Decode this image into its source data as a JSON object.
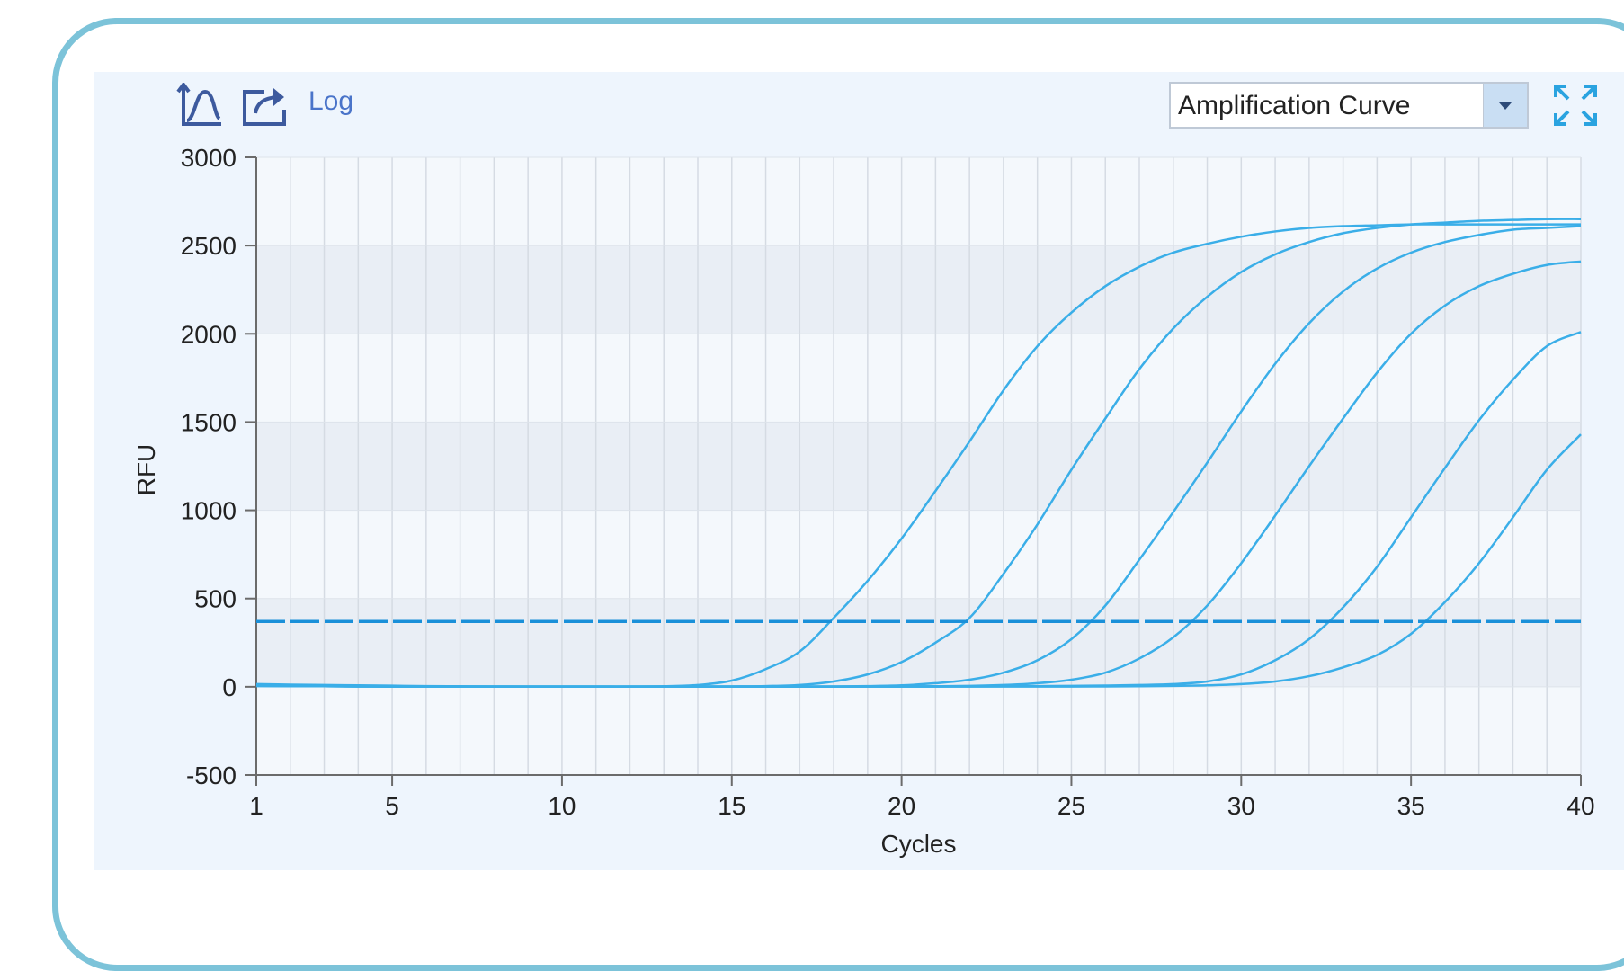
{
  "toolbar": {
    "curve_icon": "curve-axis-icon",
    "export_icon": "export-icon",
    "log_label": "Log",
    "view_select": {
      "value": "Amplification Curve"
    },
    "expand_icon": "expand-icon"
  },
  "colors": {
    "curve": "#3aaee8",
    "threshold": "#1a90d9",
    "band": "#e9eef5",
    "panel": "#eef5fd",
    "border": "#7cc3d9",
    "accent_text": "#4a74c9"
  },
  "chart_data": {
    "type": "line",
    "xlabel": "Cycles",
    "ylabel": "RFU",
    "xlim": [
      1,
      40
    ],
    "ylim": [
      -500,
      3000
    ],
    "x_ticks": [
      1,
      5,
      10,
      15,
      20,
      25,
      30,
      35,
      40
    ],
    "x_tick_labels": [
      "1",
      "5",
      "10",
      "15",
      "20",
      "25",
      "30",
      "35",
      "40"
    ],
    "y_ticks": [
      -500,
      0,
      500,
      1000,
      1500,
      2000,
      2500,
      3000
    ],
    "y_tick_labels": [
      "-500",
      "0",
      "500",
      "1000",
      "1500",
      "2000",
      "2500",
      "3000"
    ],
    "grid": true,
    "threshold": 370,
    "x": [
      1,
      2,
      3,
      4,
      5,
      6,
      7,
      8,
      9,
      10,
      11,
      12,
      13,
      14,
      15,
      16,
      17,
      18,
      19,
      20,
      21,
      22,
      23,
      24,
      25,
      26,
      27,
      28,
      29,
      30,
      31,
      32,
      33,
      34,
      35,
      36,
      37,
      38,
      39,
      40
    ],
    "series": [
      {
        "values": [
          15,
          12,
          10,
          8,
          6,
          4,
          3,
          2,
          1,
          1,
          1,
          1,
          3,
          10,
          35,
          100,
          200,
          390,
          600,
          840,
          1110,
          1390,
          1680,
          1930,
          2120,
          2270,
          2380,
          2460,
          2510,
          2550,
          2580,
          2600,
          2610,
          2615,
          2620,
          2620,
          2620,
          2620,
          2620,
          2620
        ]
      },
      {
        "values": [
          10,
          8,
          6,
          4,
          3,
          2,
          1,
          1,
          1,
          1,
          1,
          1,
          1,
          1,
          2,
          4,
          10,
          30,
          70,
          140,
          250,
          390,
          640,
          920,
          1230,
          1520,
          1800,
          2030,
          2210,
          2350,
          2450,
          2520,
          2570,
          2600,
          2620,
          2630,
          2640,
          2645,
          2650,
          2650
        ]
      },
      {
        "values": [
          5,
          4,
          3,
          2,
          1,
          1,
          1,
          1,
          1,
          1,
          1,
          1,
          1,
          1,
          1,
          1,
          1,
          2,
          4,
          8,
          20,
          40,
          80,
          150,
          270,
          460,
          720,
          990,
          1270,
          1560,
          1830,
          2060,
          2240,
          2370,
          2460,
          2520,
          2560,
          2590,
          2600,
          2610
        ]
      },
      {
        "values": [
          5,
          4,
          3,
          2,
          1,
          1,
          1,
          1,
          1,
          1,
          1,
          1,
          1,
          1,
          1,
          1,
          1,
          1,
          1,
          2,
          3,
          5,
          10,
          20,
          40,
          80,
          160,
          280,
          460,
          700,
          970,
          1250,
          1520,
          1780,
          2000,
          2160,
          2270,
          2340,
          2390,
          2410
        ]
      },
      {
        "values": [
          5,
          4,
          3,
          2,
          1,
          1,
          1,
          1,
          1,
          1,
          1,
          1,
          1,
          1,
          1,
          1,
          1,
          1,
          1,
          1,
          1,
          2,
          3,
          4,
          5,
          7,
          10,
          15,
          30,
          70,
          150,
          270,
          450,
          680,
          960,
          1240,
          1510,
          1740,
          1930,
          2010
        ]
      },
      {
        "values": [
          5,
          4,
          3,
          2,
          1,
          1,
          1,
          1,
          1,
          1,
          1,
          1,
          1,
          1,
          1,
          1,
          1,
          1,
          1,
          1,
          1,
          1,
          1,
          1,
          1,
          2,
          3,
          5,
          8,
          15,
          30,
          60,
          110,
          180,
          300,
          480,
          700,
          960,
          1230,
          1430
        ]
      }
    ]
  }
}
